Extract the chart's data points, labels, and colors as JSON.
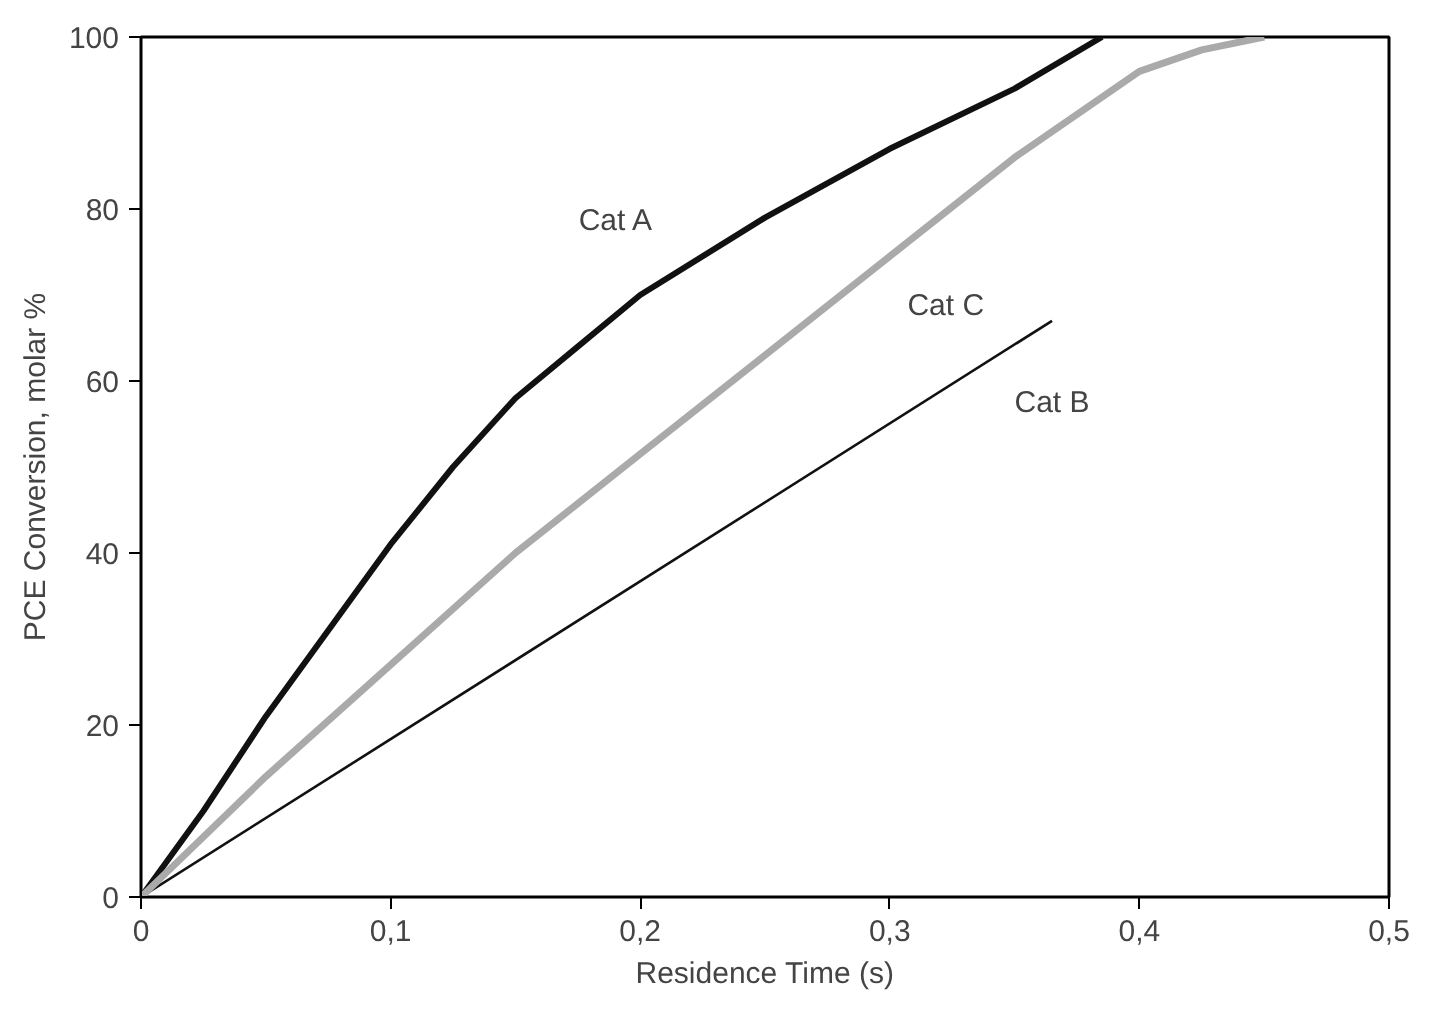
{
  "chart_data": {
    "type": "line",
    "xlabel": "Residence Time (s)",
    "ylabel": "PCE Conversion, molar %",
    "xlim": [
      0,
      0.5
    ],
    "ylim": [
      0,
      100
    ],
    "xticks": [
      {
        "value": 0,
        "label": "0"
      },
      {
        "value": 0.1,
        "label": "0,1"
      },
      {
        "value": 0.2,
        "label": "0,2"
      },
      {
        "value": 0.3,
        "label": "0,3"
      },
      {
        "value": 0.4,
        "label": "0,4"
      },
      {
        "value": 0.5,
        "label": "0,5"
      }
    ],
    "yticks": [
      0,
      20,
      40,
      60,
      80,
      100
    ],
    "grid": false,
    "marker": "none",
    "line_style": "solid",
    "series": [
      {
        "name": "Cat A",
        "color": "#111111",
        "x": [
          0,
          0.025,
          0.05,
          0.075,
          0.1,
          0.125,
          0.15,
          0.175,
          0.2,
          0.25,
          0.3,
          0.35,
          0.385
        ],
        "values": [
          0,
          10,
          21,
          31,
          41,
          50,
          58,
          64,
          70,
          79,
          87,
          94,
          100
        ]
      },
      {
        "name": "Cat B",
        "color": "#111111",
        "x": [
          0,
          0.365
        ],
        "values": [
          0,
          67
        ]
      },
      {
        "name": "Cat C",
        "color": "#aaaaaa",
        "x": [
          0,
          0.05,
          0.1,
          0.15,
          0.2,
          0.25,
          0.3,
          0.35,
          0.4,
          0.425,
          0.45
        ],
        "values": [
          0,
          14,
          27,
          40,
          51.5,
          63,
          74.5,
          86,
          96,
          98.5,
          100
        ]
      }
    ]
  }
}
